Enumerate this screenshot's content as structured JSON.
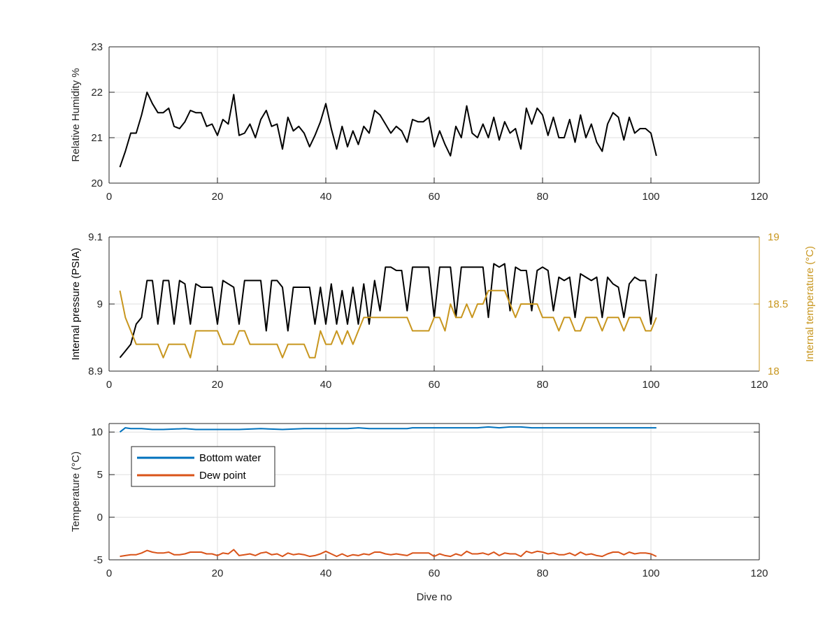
{
  "chart_data": [
    {
      "type": "line",
      "xlabel": "",
      "ylabel": "Relative Humidity %",
      "xlim": [
        0,
        120
      ],
      "ylim": [
        20,
        23
      ],
      "xticks": [
        "0",
        "20",
        "40",
        "60",
        "80",
        "100",
        "120"
      ],
      "yticks": [
        "20",
        "21",
        "22",
        "23"
      ],
      "grid": true,
      "series": [
        {
          "color": "#000000",
          "x": [
            2,
            3,
            4,
            5,
            6,
            7,
            8,
            9,
            10,
            11,
            12,
            13,
            14,
            15,
            16,
            17,
            18,
            19,
            20,
            21,
            22,
            23,
            24,
            25,
            26,
            27,
            28,
            29,
            30,
            31,
            32,
            33,
            34,
            35,
            36,
            37,
            38,
            39,
            40,
            41,
            42,
            43,
            44,
            45,
            46,
            47,
            48,
            49,
            50,
            51,
            52,
            53,
            54,
            55,
            56,
            57,
            58,
            59,
            60,
            61,
            62,
            63,
            64,
            65,
            66,
            67,
            68,
            69,
            70,
            71,
            72,
            73,
            74,
            75,
            76,
            77,
            78,
            79,
            80,
            81,
            82,
            83,
            84,
            85,
            86,
            87,
            88,
            89,
            90,
            91,
            92,
            93,
            94,
            95,
            96,
            97,
            98,
            99,
            100,
            101
          ],
          "values": [
            20.35,
            20.7,
            21.1,
            21.1,
            21.5,
            22.0,
            21.75,
            21.55,
            21.55,
            21.65,
            21.25,
            21.2,
            21.35,
            21.6,
            21.55,
            21.55,
            21.25,
            21.3,
            21.05,
            21.4,
            21.3,
            21.95,
            21.05,
            21.1,
            21.3,
            21.0,
            21.4,
            21.6,
            21.25,
            21.3,
            20.75,
            21.45,
            21.15,
            21.25,
            21.1,
            20.8,
            21.05,
            21.35,
            21.75,
            21.2,
            20.75,
            21.25,
            20.8,
            21.15,
            20.85,
            21.25,
            21.1,
            21.6,
            21.5,
            21.3,
            21.1,
            21.25,
            21.15,
            20.9,
            21.4,
            21.35,
            21.35,
            21.45,
            20.8,
            21.15,
            20.85,
            20.6,
            21.25,
            21.0,
            21.7,
            21.1,
            21.0,
            21.3,
            21.0,
            21.45,
            20.95,
            21.35,
            21.1,
            21.2,
            20.75,
            21.65,
            21.3,
            21.65,
            21.5,
            21.05,
            21.45,
            21.0,
            21.0,
            21.4,
            20.9,
            21.5,
            21.0,
            21.3,
            20.9,
            20.7,
            21.3,
            21.55,
            21.45,
            20.95,
            21.45,
            21.1,
            21.2,
            21.2,
            21.1,
            20.6
          ]
        }
      ]
    },
    {
      "type": "line",
      "xlabel": "",
      "ylabel": "Internal pressure (PSIA)",
      "y2label": "Internal temperature (°C)",
      "xlim": [
        0,
        120
      ],
      "ylim": [
        8.9,
        9.1
      ],
      "y2lim": [
        18,
        19
      ],
      "xticks": [
        "0",
        "20",
        "40",
        "60",
        "80",
        "100",
        "120"
      ],
      "yticks": [
        "8.9",
        "9",
        "9.1"
      ],
      "y2ticks": [
        "18",
        "18.5",
        "19"
      ],
      "grid": true,
      "series": [
        {
          "axis": "left",
          "color": "#000000",
          "x": [
            2,
            3,
            4,
            5,
            6,
            7,
            8,
            9,
            10,
            11,
            12,
            13,
            14,
            15,
            16,
            17,
            18,
            19,
            20,
            21,
            22,
            23,
            24,
            25,
            26,
            27,
            28,
            29,
            30,
            31,
            32,
            33,
            34,
            35,
            36,
            37,
            38,
            39,
            40,
            41,
            42,
            43,
            44,
            45,
            46,
            47,
            48,
            49,
            50,
            51,
            52,
            53,
            54,
            55,
            56,
            57,
            58,
            59,
            60,
            61,
            62,
            63,
            64,
            65,
            66,
            67,
            68,
            69,
            70,
            71,
            72,
            73,
            74,
            75,
            76,
            77,
            78,
            79,
            80,
            81,
            82,
            83,
            84,
            85,
            86,
            87,
            88,
            89,
            90,
            91,
            92,
            93,
            94,
            95,
            96,
            97,
            98,
            99,
            100,
            101
          ],
          "values": [
            8.92,
            8.93,
            8.94,
            8.97,
            8.98,
            9.035,
            9.035,
            8.97,
            9.035,
            9.035,
            8.97,
            9.035,
            9.03,
            8.97,
            9.03,
            9.025,
            9.025,
            9.025,
            8.97,
            9.035,
            9.03,
            9.025,
            8.97,
            9.035,
            9.035,
            9.035,
            9.035,
            8.96,
            9.035,
            9.035,
            9.025,
            8.96,
            9.025,
            9.025,
            9.025,
            9.025,
            8.97,
            9.025,
            8.97,
            9.03,
            8.97,
            9.02,
            8.97,
            9.025,
            8.97,
            9.03,
            8.97,
            9.035,
            8.99,
            9.055,
            9.055,
            9.05,
            9.05,
            8.99,
            9.055,
            9.055,
            9.055,
            9.055,
            8.98,
            9.055,
            9.055,
            9.055,
            8.98,
            9.055,
            9.055,
            9.055,
            9.055,
            9.055,
            8.98,
            9.06,
            9.055,
            9.06,
            8.99,
            9.055,
            9.05,
            9.05,
            8.99,
            9.05,
            9.055,
            9.05,
            8.99,
            9.04,
            9.035,
            9.04,
            8.98,
            9.045,
            9.04,
            9.035,
            9.04,
            8.98,
            9.04,
            9.03,
            9.025,
            8.98,
            9.03,
            9.04,
            9.035,
            9.035,
            8.97,
            9.045
          ]
        },
        {
          "axis": "right",
          "color": "#c8961e",
          "x": [
            2,
            3,
            4,
            5,
            6,
            7,
            8,
            9,
            10,
            11,
            12,
            13,
            14,
            15,
            16,
            17,
            18,
            19,
            20,
            21,
            22,
            23,
            24,
            25,
            26,
            27,
            28,
            29,
            30,
            31,
            32,
            33,
            34,
            35,
            36,
            37,
            38,
            39,
            40,
            41,
            42,
            43,
            44,
            45,
            46,
            47,
            48,
            49,
            50,
            51,
            52,
            53,
            54,
            55,
            56,
            57,
            58,
            59,
            60,
            61,
            62,
            63,
            64,
            65,
            66,
            67,
            68,
            69,
            70,
            71,
            72,
            73,
            74,
            75,
            76,
            77,
            78,
            79,
            80,
            81,
            82,
            83,
            84,
            85,
            86,
            87,
            88,
            89,
            90,
            91,
            92,
            93,
            94,
            95,
            96,
            97,
            98,
            99,
            100,
            101
          ],
          "values": [
            18.6,
            18.4,
            18.3,
            18.2,
            18.2,
            18.2,
            18.2,
            18.2,
            18.1,
            18.2,
            18.2,
            18.2,
            18.2,
            18.1,
            18.3,
            18.3,
            18.3,
            18.3,
            18.3,
            18.2,
            18.2,
            18.2,
            18.3,
            18.3,
            18.2,
            18.2,
            18.2,
            18.2,
            18.2,
            18.2,
            18.1,
            18.2,
            18.2,
            18.2,
            18.2,
            18.1,
            18.1,
            18.3,
            18.2,
            18.2,
            18.3,
            18.2,
            18.3,
            18.2,
            18.3,
            18.4,
            18.4,
            18.4,
            18.4,
            18.4,
            18.4,
            18.4,
            18.4,
            18.4,
            18.3,
            18.3,
            18.3,
            18.3,
            18.4,
            18.4,
            18.3,
            18.5,
            18.4,
            18.4,
            18.5,
            18.4,
            18.5,
            18.5,
            18.6,
            18.6,
            18.6,
            18.6,
            18.5,
            18.4,
            18.5,
            18.5,
            18.5,
            18.5,
            18.4,
            18.4,
            18.4,
            18.3,
            18.4,
            18.4,
            18.3,
            18.3,
            18.4,
            18.4,
            18.4,
            18.3,
            18.4,
            18.4,
            18.4,
            18.3,
            18.4,
            18.4,
            18.4,
            18.3,
            18.3,
            18.4
          ]
        }
      ]
    },
    {
      "type": "line",
      "xlabel": "Dive no",
      "ylabel": "Temperature (°C)",
      "xlim": [
        0,
        120
      ],
      "ylim": [
        -5,
        11
      ],
      "xticks": [
        "0",
        "20",
        "40",
        "60",
        "80",
        "100",
        "120"
      ],
      "yticks": [
        "-5",
        "0",
        "5",
        "10"
      ],
      "grid": true,
      "legend_placement": "top-left",
      "series": [
        {
          "name": "Bottom water",
          "color": "#0072bd",
          "x": [
            2,
            3,
            4,
            5,
            6,
            8,
            10,
            14,
            16,
            20,
            24,
            28,
            32,
            36,
            40,
            44,
            46,
            48,
            50,
            55,
            56,
            60,
            64,
            68,
            70,
            72,
            74,
            76,
            78,
            80,
            84,
            88,
            90,
            96,
            101
          ],
          "values": [
            10.0,
            10.5,
            10.4,
            10.4,
            10.4,
            10.3,
            10.3,
            10.4,
            10.3,
            10.3,
            10.3,
            10.4,
            10.3,
            10.4,
            10.4,
            10.4,
            10.5,
            10.4,
            10.4,
            10.4,
            10.5,
            10.5,
            10.5,
            10.5,
            10.6,
            10.5,
            10.6,
            10.6,
            10.5,
            10.5,
            10.5,
            10.5,
            10.5,
            10.5,
            10.5
          ]
        },
        {
          "name": "Dew point",
          "color": "#d95319",
          "x": [
            2,
            3,
            4,
            5,
            6,
            7,
            8,
            9,
            10,
            11,
            12,
            13,
            14,
            15,
            16,
            17,
            18,
            19,
            20,
            21,
            22,
            23,
            24,
            25,
            26,
            27,
            28,
            29,
            30,
            31,
            32,
            33,
            34,
            35,
            36,
            37,
            38,
            39,
            40,
            41,
            42,
            43,
            44,
            45,
            46,
            47,
            48,
            49,
            50,
            51,
            52,
            53,
            54,
            55,
            56,
            57,
            58,
            59,
            60,
            61,
            62,
            63,
            64,
            65,
            66,
            67,
            68,
            69,
            70,
            71,
            72,
            73,
            74,
            75,
            76,
            77,
            78,
            79,
            80,
            81,
            82,
            83,
            84,
            85,
            86,
            87,
            88,
            89,
            90,
            91,
            92,
            93,
            94,
            95,
            96,
            97,
            98,
            99,
            100,
            101
          ],
          "values": [
            -4.6,
            -4.5,
            -4.4,
            -4.4,
            -4.2,
            -3.9,
            -4.1,
            -4.2,
            -4.2,
            -4.1,
            -4.4,
            -4.4,
            -4.3,
            -4.1,
            -4.1,
            -4.1,
            -4.3,
            -4.3,
            -4.5,
            -4.2,
            -4.3,
            -3.8,
            -4.5,
            -4.4,
            -4.3,
            -4.5,
            -4.2,
            -4.1,
            -4.4,
            -4.3,
            -4.6,
            -4.2,
            -4.4,
            -4.3,
            -4.4,
            -4.6,
            -4.5,
            -4.3,
            -4.0,
            -4.3,
            -4.6,
            -4.3,
            -4.6,
            -4.4,
            -4.5,
            -4.3,
            -4.4,
            -4.1,
            -4.1,
            -4.3,
            -4.4,
            -4.3,
            -4.4,
            -4.5,
            -4.2,
            -4.2,
            -4.2,
            -4.2,
            -4.6,
            -4.3,
            -4.5,
            -4.6,
            -4.3,
            -4.5,
            -4.0,
            -4.3,
            -4.3,
            -4.2,
            -4.4,
            -4.1,
            -4.5,
            -4.2,
            -4.3,
            -4.3,
            -4.6,
            -4.0,
            -4.2,
            -4.0,
            -4.1,
            -4.3,
            -4.2,
            -4.4,
            -4.4,
            -4.2,
            -4.5,
            -4.1,
            -4.4,
            -4.3,
            -4.5,
            -4.6,
            -4.3,
            -4.1,
            -4.1,
            -4.4,
            -4.1,
            -4.3,
            -4.2,
            -4.2,
            -4.3,
            -4.6
          ]
        }
      ]
    }
  ]
}
